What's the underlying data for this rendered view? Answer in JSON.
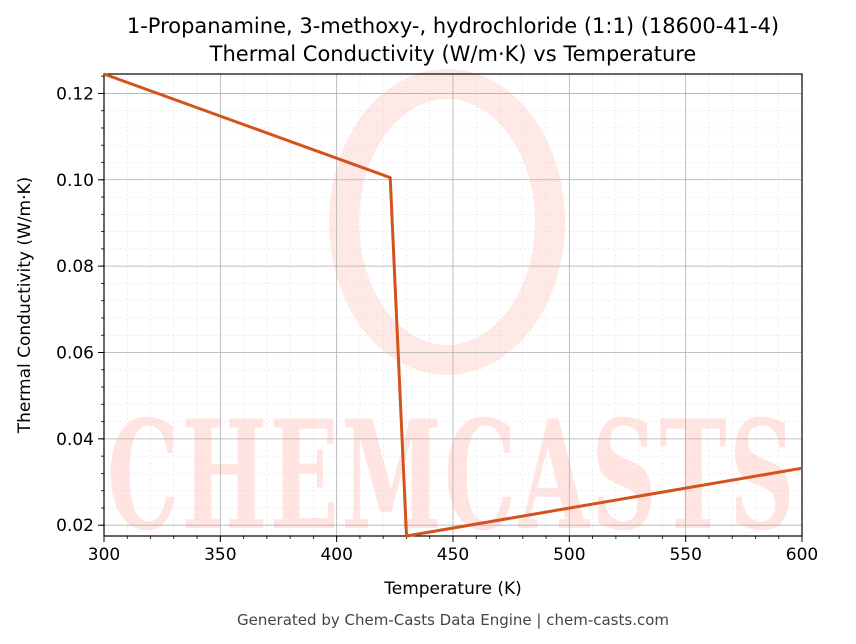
{
  "chart_data": {
    "type": "line",
    "title": "1-Propanamine, 3-methoxy-, hydrochloride (1:1) (18600-41-4)",
    "subtitle": "Thermal Conductivity (W/m·K) vs Temperature",
    "xlabel": "Temperature (K)",
    "ylabel": "Thermal Conductivity (W/m·K)",
    "xlim": [
      300,
      600
    ],
    "ylim": [
      0.0175,
      0.1245
    ],
    "xticks": [
      300,
      350,
      400,
      450,
      500,
      550,
      600
    ],
    "yticks": [
      0.02,
      0.04,
      0.06,
      0.08,
      0.1,
      0.12
    ],
    "xtick_labels": [
      "300",
      "350",
      "400",
      "450",
      "500",
      "550",
      "600"
    ],
    "ytick_labels": [
      "0.02",
      "0.04",
      "0.06",
      "0.08",
      "0.10",
      "0.12"
    ],
    "grid": true,
    "series": [
      {
        "color": "#d4531c",
        "x": [
          300,
          423,
          430,
          600
        ],
        "y": [
          0.1245,
          0.1005,
          0.0175,
          0.0332
        ]
      }
    ]
  },
  "watermark": "CHEMCASTS",
  "footer": "Generated by Chem-Casts Data Engine | chem-casts.com"
}
